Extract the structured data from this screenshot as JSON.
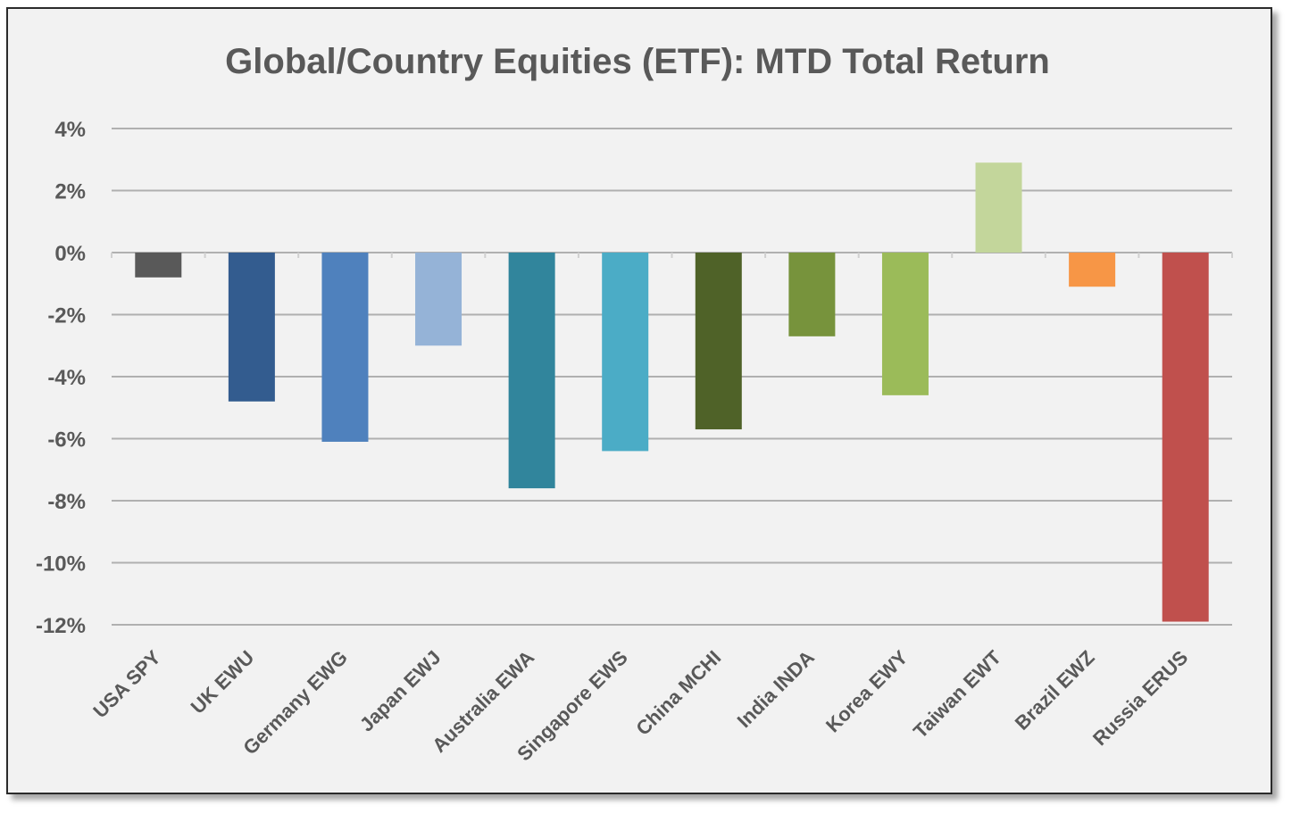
{
  "chart_data": {
    "type": "bar",
    "title": "Global/Country Equities (ETF): MTD Total Return",
    "xlabel": "",
    "ylabel": "",
    "ylim": [
      -12,
      4
    ],
    "yticks": [
      4,
      2,
      0,
      -2,
      -4,
      -6,
      -8,
      -10,
      -12
    ],
    "ytick_labels": [
      "4%",
      "2%",
      "0%",
      "-2%",
      "-4%",
      "-6%",
      "-8%",
      "-10%",
      "-12%"
    ],
    "grid": true,
    "categories": [
      "USA SPY",
      "UK EWU",
      "Germany EWG",
      "Japan EWJ",
      "Australia EWA",
      "Singapore EWS",
      "China MCHI",
      "India INDA",
      "Korea EWY",
      "Taiwan EWT",
      "Brazil EWZ",
      "Russia ERUS"
    ],
    "values": [
      -0.8,
      -4.8,
      -6.1,
      -3.0,
      -7.6,
      -6.4,
      -5.7,
      -2.7,
      -4.6,
      2.9,
      -1.1,
      -11.9
    ],
    "colors": [
      "#595959",
      "#335c8f",
      "#4f81bd",
      "#95b3d7",
      "#31859c",
      "#4bacc6",
      "#4f6228",
      "#77933c",
      "#9bbb59",
      "#c3d69b",
      "#f79646",
      "#c0504d"
    ]
  }
}
